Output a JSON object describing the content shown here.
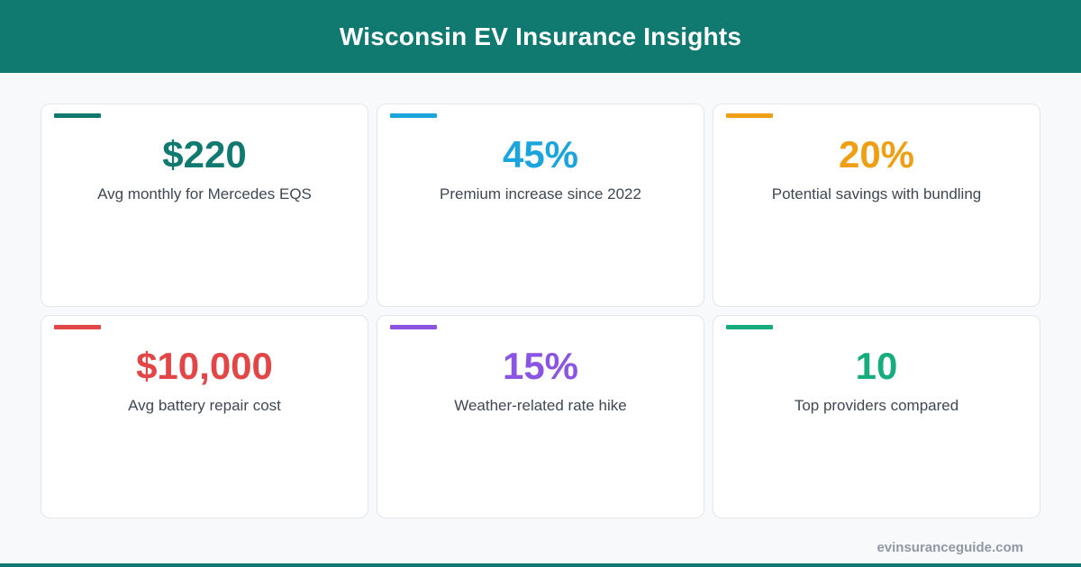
{
  "header": {
    "title": "Wisconsin EV Insurance Insights",
    "background_color": "#117a70"
  },
  "cards": [
    {
      "value": "$220",
      "label": "Avg monthly for Mercedes EQS",
      "accent_color": "#117a70"
    },
    {
      "value": "45%",
      "label": "Premium increase since 2022",
      "accent_color": "#1ba5dc"
    },
    {
      "value": "20%",
      "label": "Potential savings with bundling",
      "accent_color": "#ee9f14"
    },
    {
      "value": "$10,000",
      "label": "Avg battery repair cost",
      "accent_color": "#e24646"
    },
    {
      "value": "15%",
      "label": "Weather-related rate hike",
      "accent_color": "#8b55e3"
    },
    {
      "value": "10",
      "label": "Top providers compared",
      "accent_color": "#17ac7e"
    }
  ],
  "footer": {
    "site": "evinsuranceguide.com"
  }
}
